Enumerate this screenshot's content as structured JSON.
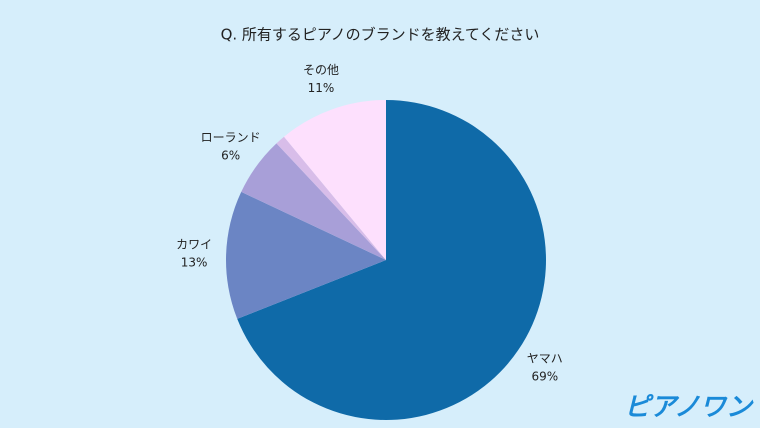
{
  "chart_data": {
    "type": "pie",
    "title": "Q. 所有するピアノのブランドを教えてください",
    "categories": [
      "ヤマハ",
      "カワイ",
      "ローランド",
      null,
      "その他"
    ],
    "values": [
      69,
      13,
      6,
      1,
      11
    ],
    "value_labels": [
      "69%",
      "13%",
      "6%",
      null,
      "11%"
    ],
    "colors": [
      "#0f6aa8",
      "#6b85c4",
      "#a89fd8",
      "#d8bde9",
      "#fde0fd"
    ]
  },
  "logo": "ピアノワン"
}
